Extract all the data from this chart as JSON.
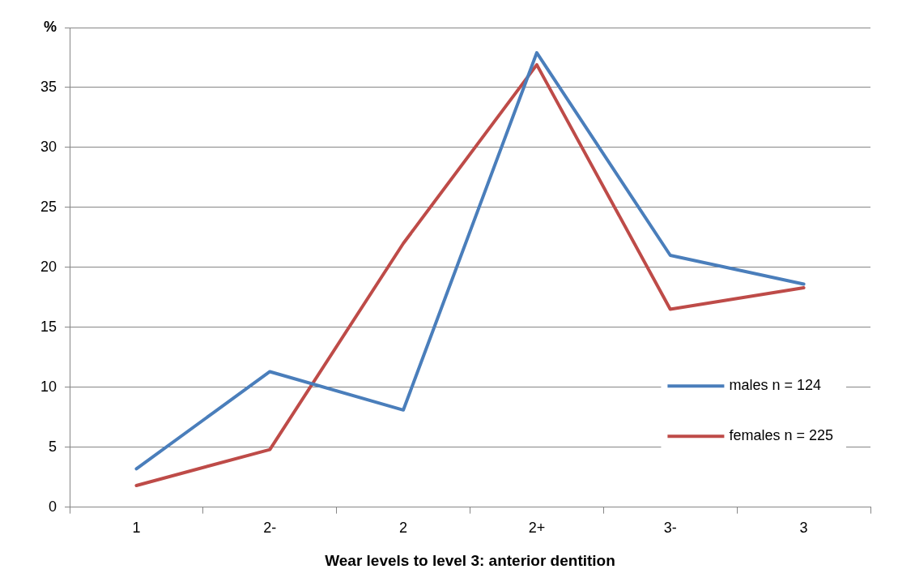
{
  "chart_data": {
    "type": "line",
    "xlabel": "Wear levels to level 3: anterior dentition",
    "categories": [
      "1",
      "2-",
      "2",
      "2+",
      "3-",
      "3"
    ],
    "series": [
      {
        "name": "males n = 124",
        "color": "#4a7ebb",
        "values": [
          3.2,
          11.3,
          8.1,
          37.9,
          21.0,
          18.6
        ]
      },
      {
        "name": "females n = 225",
        "color": "#be4b48",
        "values": [
          1.8,
          4.8,
          22.0,
          36.9,
          16.5,
          18.3
        ]
      }
    ],
    "ylim": [
      0,
      40
    ],
    "yticks": [
      0,
      5,
      10,
      15,
      20,
      25,
      30,
      35,
      {
        "value": 40,
        "label": "%"
      }
    ],
    "grid": "y",
    "legend": "right",
    "marker": "none",
    "line_style": "solid"
  }
}
